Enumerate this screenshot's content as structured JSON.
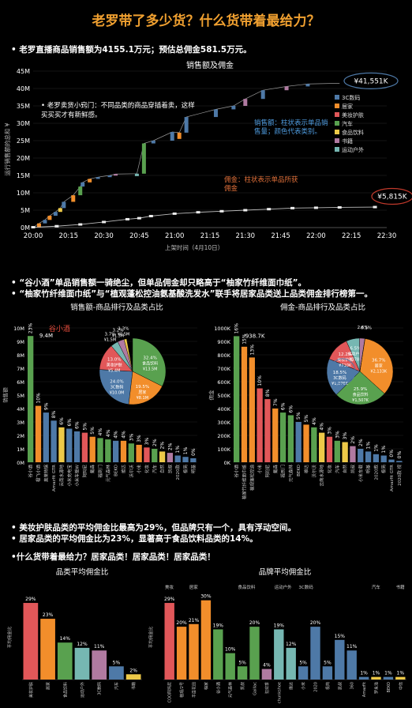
{
  "page": {
    "title": "老罗带了多少货？什么货带着最给力？",
    "bullet1": "• 老罗直播商品销售额为4155.1万元；预估总佣金581.5万元。",
    "bullet2a": "• “谷小酒”单品销售额一骑绝尘，但单品佣金却只略高于“柚家竹纤维面巾纸”。",
    "bullet2b": "• “柚家竹纤维面巾纸”与“植观蓬松控油氨基酸洗发水”联手将居家品类送上品类佣金排行榜第一。",
    "bullet3a": "• 美妆护肤品类的平均佣金比最高为29%，但品牌只有一个，具有浮动空间。",
    "bullet3b": "• 居家品类的平均佣金比为23%，显著高于食品饮料品类的14%。",
    "bullet4": "•什么货带着最给力？居家品类！居家品类！居家品类！"
  },
  "chart_data": [
    {
      "type": "bar",
      "title": "销售额及佣金",
      "xlabel": "上架时间（4月10日）",
      "ylabel": "运行销售额的总和 ¥",
      "x": [
        "20:00",
        "20:15",
        "20:30",
        "20:45",
        "21:00",
        "21:15",
        "21:30",
        "21:45",
        "22:00",
        "22:15",
        "22:30"
      ],
      "y_ticks": [
        "0M",
        "5M",
        "10M",
        "15M",
        "20M",
        "25M",
        "30M",
        "35M",
        "40M",
        "45M"
      ],
      "ylim": [
        0,
        45
      ],
      "sales_running_total_end": "¥41,551K",
      "commission_running_total_end": "¥5,815K",
      "legend": [
        "3C数码",
        "居家",
        "美妆护肤",
        "汽车",
        "食品饮料",
        "书籍",
        "运动户外"
      ],
      "legend_colors": [
        "#4e79a7",
        "#f28e2b",
        "#e15759",
        "#59a14f",
        "#edc948",
        "#b07aa1",
        "#76b7b2"
      ],
      "sales_steps": [
        {
          "t": 0.5,
          "from": 0.0,
          "to": 1.2,
          "c": "#f28e2b"
        },
        {
          "t": 1.0,
          "from": 1.2,
          "to": 2.2,
          "c": "#4e79a7"
        },
        {
          "t": 1.4,
          "from": 2.2,
          "to": 3.4,
          "c": "#f28e2b"
        },
        {
          "t": 1.9,
          "from": 3.4,
          "to": 4.5,
          "c": "#4e79a7"
        },
        {
          "t": 2.3,
          "from": 4.5,
          "to": 5.6,
          "c": "#edc948"
        },
        {
          "t": 2.6,
          "from": 5.6,
          "to": 7.4,
          "c": "#4e79a7"
        },
        {
          "t": 3.4,
          "from": 7.4,
          "to": 9.3,
          "c": "#f28e2b"
        },
        {
          "t": 4.0,
          "from": 9.3,
          "to": 11.8,
          "c": "#59a14f"
        },
        {
          "t": 4.2,
          "from": 11.8,
          "to": 13.0,
          "c": "#4e79a7"
        },
        {
          "t": 4.8,
          "from": 13.0,
          "to": 14.0,
          "c": "#f28e2b"
        },
        {
          "t": 5.5,
          "from": 14.0,
          "to": 14.5,
          "c": "#4e79a7"
        },
        {
          "t": 6.5,
          "from": 14.5,
          "to": 15.0,
          "c": "#4e79a7"
        },
        {
          "t": 7.0,
          "from": 15.0,
          "to": 15.4,
          "c": "#b07aa1"
        },
        {
          "t": 8.8,
          "from": 14.8,
          "to": 15.5,
          "c": "#76b7b2"
        },
        {
          "t": 9.4,
          "from": 15.5,
          "to": 24.2,
          "c": "#59a14f"
        },
        {
          "t": 10.2,
          "from": 24.2,
          "to": 25.0,
          "c": "#4e79a7"
        },
        {
          "t": 11.8,
          "from": 25.0,
          "to": 27.5,
          "c": "#4e79a7"
        },
        {
          "t": 12.4,
          "from": 25.5,
          "to": 27.3,
          "c": "#f28e2b"
        },
        {
          "t": 13.0,
          "from": 27.3,
          "to": 31.8,
          "c": "#4e79a7"
        },
        {
          "t": 15.5,
          "from": 31.8,
          "to": 34.0,
          "c": "#4e79a7"
        },
        {
          "t": 17.0,
          "from": 34.0,
          "to": 35.0,
          "c": "#4e79a7"
        },
        {
          "t": 18.0,
          "from": 35.0,
          "to": 37.0,
          "c": "#b07aa1"
        },
        {
          "t": 19.5,
          "from": 37.0,
          "to": 39.5,
          "c": "#4e79a7"
        },
        {
          "t": 21.5,
          "from": 39.5,
          "to": 40.6,
          "c": "#b07aa1"
        },
        {
          "t": 23.3,
          "from": 40.6,
          "to": 41.3,
          "c": "#4e79a7"
        }
      ],
      "commission_line": [
        [
          0,
          0.1
        ],
        [
          2,
          0.4
        ],
        [
          4,
          0.9
        ],
        [
          6,
          1.6
        ],
        [
          8,
          2.4
        ],
        [
          9,
          2.7
        ],
        [
          10,
          3.3
        ],
        [
          12,
          4.0
        ],
        [
          14,
          4.4
        ],
        [
          16,
          4.7
        ],
        [
          18,
          5.0
        ],
        [
          20,
          5.3
        ],
        [
          22,
          5.6
        ],
        [
          24,
          5.7
        ],
        [
          26,
          5.8
        ],
        [
          29,
          5.9
        ]
      ],
      "annotations": {
        "tip": "• 老罗卖货小窍门：不同品类的商品穿插着卖，这样买买买才有新鲜感。",
        "sales_note": "销售额：柱状表示单品销售量；颜色代表类别。",
        "commission_note": "佣金：柱状表示单品所获佣金"
      }
    },
    {
      "type": "bar",
      "title": "销售额-商品排行及品类占比",
      "ylabel": "销售额",
      "y_ticks": [
        "0M",
        "1M",
        "2M",
        "3M",
        "4M",
        "5M",
        "6M",
        "7M",
        "8M",
        "9M",
        "10M"
      ],
      "ylim": [
        0,
        10
      ],
      "top_value_label": "9.4M",
      "callout": "谷小酒",
      "categories": [
        "谷小酒",
        "橙飞小酒",
        "奥莱特锅",
        "Amazfit GTR",
        "云南水源地",
        "小米充电宝",
        "小米车载W",
        "阿玛尼",
        "戴森",
        "福到门",
        "元气森林",
        "BEKO",
        "维达",
        "沃尔沃",
        "小米",
        "化妆",
        "汽车",
        "自然",
        "凯叔",
        "2020款",
        "极简",
        "明基"
      ],
      "values": [
        9.4,
        4.2,
        3.7,
        3.1,
        2.6,
        2.5,
        2.3,
        2.2,
        1.9,
        1.8,
        1.7,
        1.6,
        1.6,
        1.4,
        1.3,
        1.1,
        1.0,
        0.8,
        0.7,
        0.5,
        0.4,
        0.3
      ],
      "bar_pct": [
        "23%",
        "10%",
        "9%",
        "8%",
        "6%",
        "6%",
        "6%",
        "5%",
        "5%",
        "4%",
        "4%",
        "4%",
        "4%",
        "3%",
        "3%",
        "3%",
        "2%",
        "2%",
        "2%",
        "1%",
        "1%",
        "0%"
      ],
      "colors": [
        "#59a14f",
        "#f28e2b",
        "#4e79a7",
        "#4e79a7",
        "#edc948",
        "#4e79a7",
        "#4e79a7",
        "#e15759",
        "#f28e2b",
        "#59a14f",
        "#59a14f",
        "#4e79a7",
        "#f28e2b",
        "#59a14f",
        "#f28e2b",
        "#e15759",
        "#59a14f",
        "#edc948",
        "#b07aa1",
        "#4e79a7",
        "#4e79a7",
        "#4e79a7"
      ],
      "pie": [
        {
          "label": "食品饮料",
          "pct": "32.4%",
          "value": "¥13.5M",
          "c": "#59a14f",
          "frac": 0.324
        },
        {
          "label": "居家",
          "pct": "19.5%",
          "value": "¥8.1M",
          "c": "#f28e2b",
          "frac": 0.195
        },
        {
          "label": "3C数码",
          "pct": "24.0%",
          "value": "¥10.0M",
          "c": "#4e79a7",
          "frac": 0.24
        },
        {
          "label": "美妆护肤",
          "pct": "13.0%",
          "value": "¥5.4M",
          "c": "#e15759",
          "frac": 0.13
        },
        {
          "label": "运动户外",
          "pct": "3.7%",
          "value": "¥1.5M",
          "c": "#76b7b2",
          "frac": 0.037
        },
        {
          "label": "书籍",
          "pct": "3.2%",
          "value": "¥1.3M",
          "c": "#b07aa1",
          "frac": 0.032
        },
        {
          "label": "汽车",
          "pct": "1.3%",
          "value": "¥0.5M",
          "c": "#edc948",
          "frac": 0.013
        }
      ]
    },
    {
      "type": "bar",
      "title": "佣金-商品排行及品类占比",
      "ylabel": "佣金",
      "y_ticks": [
        "0K",
        "100K",
        "200K",
        "300K",
        "400K",
        "500K",
        "600K",
        "700K",
        "800K",
        "900K",
        "1000K"
      ],
      "ylim": [
        0,
        1000
      ],
      "top_value_label": "938.7K",
      "categories": [
        "谷小酒",
        "柚家竹纤维面巾纸",
        "植观蓬松控油",
        "小米",
        "阿玛尼",
        "戴森",
        "福到门",
        "元气森林",
        "BEKO",
        "维达",
        "沃尔沃",
        "云南水源地",
        "化妆",
        "汽车",
        "自然",
        "凯叔",
        "小米车载",
        "明基",
        "2020款",
        "极简",
        "Amazfit GTR",
        "2020款 视"
      ],
      "values": [
        938.7,
        860,
        780,
        550,
        470,
        400,
        370,
        350,
        300,
        280,
        260,
        220,
        190,
        160,
        150,
        120,
        100,
        80,
        60,
        50,
        20,
        10
      ],
      "bar_pct": [
        "16%",
        "15%",
        "13%",
        "10%",
        "8%",
        "7%",
        "6%",
        "6%",
        "5%",
        "5%",
        "4%",
        "4%",
        "3%",
        "3%",
        "3%",
        "2%",
        "2%",
        "1%",
        "1%",
        "1%",
        "0%",
        "0%"
      ],
      "colors": [
        "#59a14f",
        "#f28e2b",
        "#f28e2b",
        "#e15759",
        "#e15759",
        "#f28e2b",
        "#59a14f",
        "#59a14f",
        "#4e79a7",
        "#f28e2b",
        "#59a14f",
        "#edc948",
        "#e15759",
        "#59a14f",
        "#edc948",
        "#b07aa1",
        "#4e79a7",
        "#4e79a7",
        "#4e79a7",
        "#4e79a7",
        "#4e79a7",
        "#4e79a7"
      ],
      "pie": [
        {
          "label": "居家",
          "pct": "36.7%",
          "value": "¥2,133K",
          "c": "#f28e2b",
          "frac": 0.367
        },
        {
          "label": "食品饮料",
          "pct": "25.9%",
          "value": "¥1,507K",
          "c": "#59a14f",
          "frac": 0.259
        },
        {
          "label": "3C数码",
          "pct": "18.5%",
          "value": "¥1,076K",
          "c": "#4e79a7",
          "frac": 0.185
        },
        {
          "label": "美妆护肤",
          "pct": "12.2%",
          "value": "¥710K",
          "c": "#e15759",
          "frac": 0.122
        },
        {
          "label": "运动户外",
          "pct": "6.5%",
          "value": "¥378K",
          "c": "#76b7b2",
          "frac": 0.065
        },
        {
          "label": "书籍",
          "pct": "2.6%",
          "value": "",
          "c": "#b07aa1",
          "frac": 0.026
        },
        {
          "label": "汽车",
          "pct": "0.1%",
          "value": "",
          "c": "#edc948",
          "frac": 0.001
        }
      ]
    },
    {
      "type": "bar",
      "title": "品类平均佣金比",
      "ylabel": "平均佣金比",
      "categories": [
        "美妆护肤",
        "居家",
        "食品饮料",
        "运动户外",
        "3C数码",
        "汽车",
        "书籍"
      ],
      "values": [
        29,
        23,
        14,
        12,
        11,
        5,
        2
      ],
      "labels": [
        "29%",
        "23%",
        "14%",
        "12%",
        "11%",
        "5%",
        "2%"
      ],
      "colors": [
        "#e15759",
        "#f28e2b",
        "#59a14f",
        "#76b7b2",
        "#b07aa1",
        "#4e79a7",
        "#edc948"
      ],
      "ylim": [
        0,
        32
      ]
    },
    {
      "type": "bar",
      "title": "品牌平均佣金比",
      "ylabel": "平均佣金比",
      "groups": [
        "美妆",
        "居家",
        "食品饮料",
        "运动户外",
        "3C数码",
        "汽车",
        "书籍"
      ],
      "categories": [
        "COO阿玛尼",
        "植观/2号",
        "半亩花田",
        "柚家",
        "谷小酒",
        "元气森林",
        "凯叔",
        "Gaillac",
        "狂欢季",
        "chunkshoe",
        "维达",
        "小米",
        "2020",
        "极简",
        "凯叔",
        "360",
        "Amazfit",
        "罗永浩",
        "BEKO",
        "中信"
      ],
      "values": [
        29,
        20,
        21,
        30,
        19,
        10,
        5,
        20,
        4,
        19,
        12,
        5,
        20,
        5,
        15,
        11,
        1,
        1,
        1,
        1
      ],
      "labels": [
        "29%",
        "20%",
        "21%",
        "30%",
        "19%",
        "10%",
        "5%",
        "20%",
        "4%",
        "19%",
        "12%",
        "5%",
        "20%",
        "5%",
        "15%",
        "11%",
        "1%",
        "1%",
        "1%",
        "1%"
      ],
      "colors": [
        "#e15759",
        "#f28e2b",
        "#f28e2b",
        "#f28e2b",
        "#59a14f",
        "#59a14f",
        "#59a14f",
        "#59a14f",
        "#b07aa1",
        "#76b7b2",
        "#76b7b2",
        "#4e79a7",
        "#4e79a7",
        "#4e79a7",
        "#4e79a7",
        "#4e79a7",
        "#4e79a7",
        "#edc948",
        "#4e79a7",
        "#edc948"
      ],
      "ylim": [
        0,
        32
      ]
    }
  ]
}
